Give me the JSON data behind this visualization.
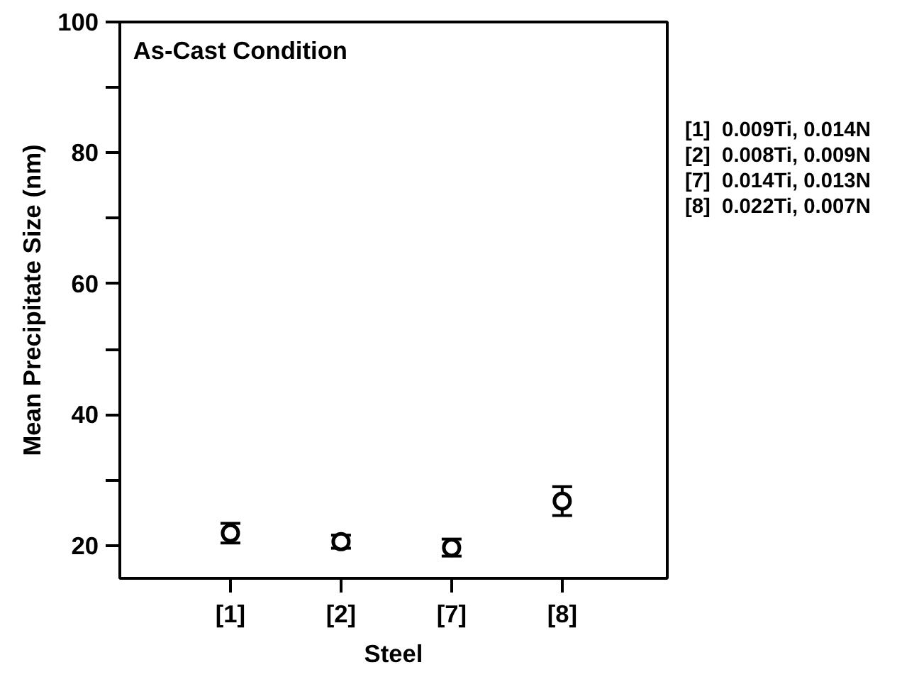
{
  "chart_data": {
    "type": "scatter",
    "title": "As-Cast Condition",
    "xlabel": "Steel",
    "ylabel": "Mean Precipitate Size (nm)",
    "categories": [
      "[1]",
      "[2]",
      "[7]",
      "[8]"
    ],
    "series": [
      {
        "color": "#000000",
        "values": [
          21.9,
          20.6,
          19.7,
          26.8
        ],
        "errors": [
          1.5,
          1.0,
          1.3,
          2.2
        ]
      }
    ],
    "ylim": [
      15,
      100
    ],
    "yticks": [
      20,
      {
        "value": 30,
        "label": null
      },
      40,
      {
        "value": 50,
        "label": null
      },
      60,
      {
        "value": 70,
        "label": null
      },
      80,
      {
        "value": 90,
        "label": null
      },
      100
    ],
    "annotations": [
      "[1]  0.009Ti, 0.014N",
      "[2]  0.008Ti, 0.009N",
      "[7]  0.014Ti, 0.013N",
      "[8]  0.022Ti, 0.007N"
    ],
    "grid": false,
    "marker": "circle"
  }
}
